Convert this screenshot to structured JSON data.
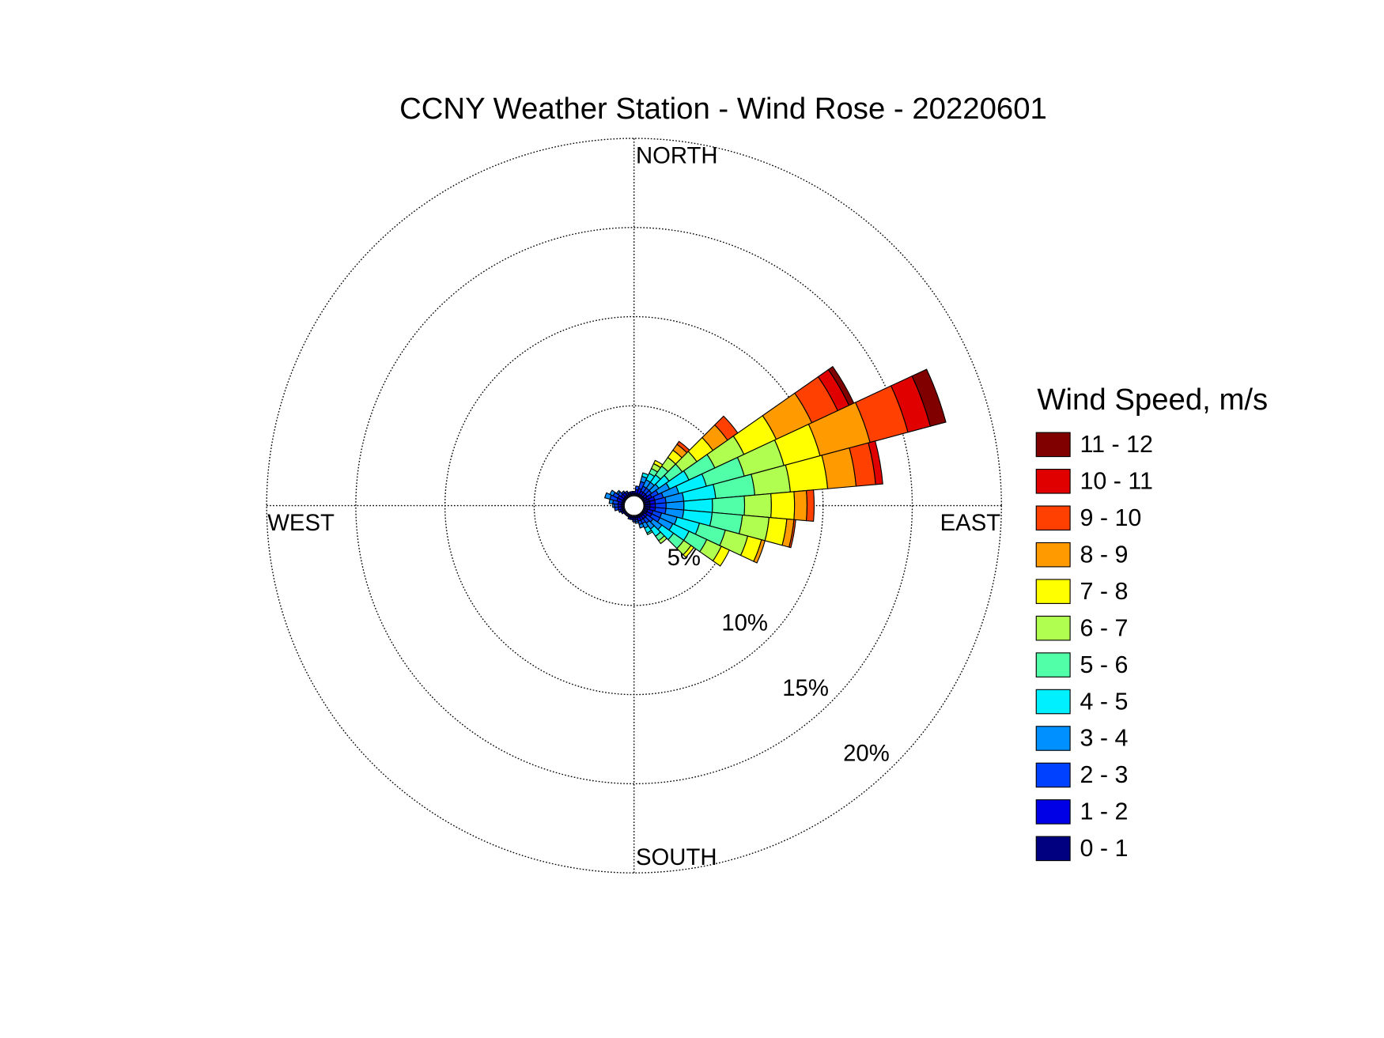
{
  "chart_data": {
    "type": "windrose",
    "title": "CCNY Weather Station - Wind Rose - 20220601",
    "legend_title": "Wind Speed, m/s",
    "legend_position": "right",
    "direction_labels": {
      "north": "NORTH",
      "east": "EAST",
      "south": "SOUTH",
      "west": "WEST"
    },
    "directions": [
      0,
      10,
      20,
      30,
      40,
      50,
      60,
      70,
      80,
      90,
      100,
      110,
      120,
      130,
      140,
      150,
      160,
      170,
      180,
      190,
      200,
      210,
      220,
      230,
      240,
      250,
      260,
      270,
      280,
      290,
      300,
      310,
      320,
      330,
      340,
      350
    ],
    "rlim": [
      0,
      20
    ],
    "rticks": [
      {
        "value": 5,
        "label": "5%"
      },
      {
        "value": 10,
        "label": "10%"
      },
      {
        "value": 15,
        "label": "15%"
      },
      {
        "value": 20,
        "label": "20%"
      }
    ],
    "grid": true,
    "series": [
      {
        "name": "0 - 1",
        "color": "#000080",
        "values": [
          0.1,
          0.1,
          0.1,
          0.1,
          0.1,
          0.1,
          0.2,
          0.3,
          0.3,
          0.3,
          0.3,
          0.2,
          0.2,
          0.1,
          0.1,
          0.1,
          0.1,
          0.1,
          0.1,
          0.1,
          0.1,
          0.1,
          0.1,
          0.1,
          0.1,
          0.1,
          0.1,
          0.1,
          0.1,
          0.1,
          0.1,
          0.1,
          0.1,
          0.1,
          0.1,
          0.1
        ]
      },
      {
        "name": "1 - 2",
        "color": "#0000e6",
        "values": [
          0.1,
          0.2,
          0.3,
          0.2,
          0.2,
          0.2,
          0.3,
          0.3,
          0.3,
          0.3,
          0.3,
          0.3,
          0.3,
          0.2,
          0.2,
          0.2,
          0.2,
          0.1,
          0.1,
          0.1,
          0.1,
          0,
          0,
          0,
          0.1,
          0.1,
          0.2,
          0.2,
          0.2,
          0.3,
          0.3,
          0.2,
          0.2,
          0.1,
          0.1,
          0.1
        ]
      },
      {
        "name": "2 - 3",
        "color": "#0040ff",
        "values": [
          0,
          0.2,
          0.4,
          0.3,
          0.3,
          0.3,
          0.4,
          0.5,
          0.6,
          0.6,
          0.6,
          0.5,
          0.5,
          0.4,
          0.3,
          0.2,
          0.2,
          0.1,
          0.1,
          0,
          0,
          0,
          0,
          0,
          0,
          0.1,
          0.2,
          0.2,
          0.3,
          0.4,
          0.3,
          0.2,
          0.1,
          0.1,
          0,
          0
        ]
      },
      {
        "name": "3 - 4",
        "color": "#0090ff",
        "values": [
          0,
          0,
          0.3,
          0.4,
          0.4,
          0.5,
          0.7,
          0.9,
          1.0,
          1.0,
          1.0,
          0.9,
          0.8,
          0.6,
          0.4,
          0.3,
          0.2,
          0.1,
          0,
          0,
          0,
          0,
          0,
          0,
          0,
          0,
          0,
          0.1,
          0.2,
          0.3,
          0.2,
          0.1,
          0,
          0,
          0,
          0
        ]
      },
      {
        "name": "4 - 5",
        "color": "#00f0ff",
        "values": [
          0,
          0,
          0.2,
          0.4,
          0.5,
          0.7,
          1.2,
          1.6,
          1.8,
          1.6,
          1.6,
          1.3,
          1.0,
          0.8,
          0.5,
          0.3,
          0,
          0,
          0,
          0,
          0,
          0,
          0,
          0,
          0,
          0,
          0,
          0,
          0,
          0,
          0,
          0,
          0,
          0,
          0,
          0
        ]
      },
      {
        "name": "5 - 6",
        "color": "#50ffa8",
        "values": [
          0,
          0,
          0,
          0.3,
          0.6,
          0.9,
          1.6,
          2.2,
          2.2,
          1.8,
          1.7,
          1.5,
          1.1,
          0.7,
          0.3,
          0.1,
          0,
          0,
          0,
          0,
          0,
          0,
          0,
          0,
          0,
          0,
          0,
          0,
          0,
          0,
          0,
          0,
          0,
          0,
          0,
          0
        ]
      },
      {
        "name": "6 - 7",
        "color": "#b0ff50",
        "values": [
          0,
          0,
          0,
          0.3,
          0.6,
          1.0,
          1.8,
          2.3,
          2.0,
          1.5,
          1.5,
          1.3,
          0.9,
          0.5,
          0.2,
          0,
          0,
          0,
          0,
          0,
          0,
          0,
          0,
          0,
          0,
          0,
          0,
          0,
          0,
          0,
          0,
          0,
          0,
          0,
          0,
          0
        ]
      },
      {
        "name": "7 - 8",
        "color": "#ffff00",
        "values": [
          0,
          0,
          0,
          0.2,
          0.5,
          1.1,
          2.0,
          2.1,
          2.1,
          1.3,
          1.0,
          0.8,
          0.5,
          0.2,
          0,
          0,
          0,
          0,
          0,
          0,
          0,
          0,
          0,
          0,
          0,
          0,
          0,
          0,
          0,
          0,
          0,
          0,
          0,
          0,
          0,
          0
        ]
      },
      {
        "name": "8 - 9",
        "color": "#ff9a00",
        "values": [
          0,
          0,
          0,
          0,
          0.4,
          1.0,
          2.2,
          2.9,
          1.6,
          0.7,
          0.4,
          0.2,
          0,
          0,
          0,
          0,
          0,
          0,
          0,
          0,
          0,
          0,
          0,
          0,
          0,
          0,
          0,
          0,
          0,
          0,
          0,
          0,
          0,
          0,
          0,
          0
        ]
      },
      {
        "name": "9 - 10",
        "color": "#ff4000",
        "values": [
          0,
          0,
          0,
          0,
          0.2,
          0.7,
          1.6,
          2.2,
          1.1,
          0.4,
          0.1,
          0,
          0,
          0,
          0,
          0,
          0,
          0,
          0,
          0,
          0,
          0,
          0,
          0,
          0,
          0,
          0,
          0,
          0,
          0,
          0,
          0,
          0,
          0,
          0,
          0
        ]
      },
      {
        "name": "10 - 11",
        "color": "#e00000",
        "values": [
          0,
          0,
          0,
          0,
          0,
          0,
          0.7,
          1.3,
          0.4,
          0,
          0,
          0,
          0,
          0,
          0,
          0,
          0,
          0,
          0,
          0,
          0,
          0,
          0,
          0,
          0,
          0,
          0,
          0,
          0,
          0,
          0,
          0,
          0,
          0,
          0,
          0
        ]
      },
      {
        "name": "11 - 12",
        "color": "#800000",
        "values": [
          0,
          0,
          0,
          0,
          0,
          0,
          0.3,
          0.9,
          0,
          0,
          0,
          0,
          0,
          0,
          0,
          0,
          0,
          0,
          0,
          0,
          0,
          0,
          0,
          0,
          0,
          0,
          0,
          0,
          0,
          0,
          0,
          0,
          0,
          0,
          0,
          0
        ]
      }
    ]
  }
}
